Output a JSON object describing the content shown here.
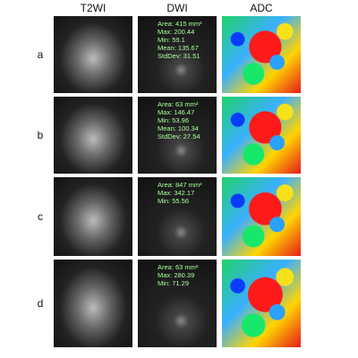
{
  "columns": [
    "T2WI",
    "DWI",
    "ADC"
  ],
  "rows": [
    {
      "label": "a",
      "dwi_stats": [
        "Area: 415 mm²",
        "Max: 200.44",
        "Min: 59.1",
        "Mean: 135.67",
        "StdDev: 31.51"
      ]
    },
    {
      "label": "b",
      "dwi_stats": [
        "Area: 63 mm²",
        "Max: 146.47",
        "Min: 53.96",
        "Mean: 100.34",
        "StdDev: 27.54"
      ]
    },
    {
      "label": "c",
      "dwi_stats": [
        "Area: 847 mm²",
        "Max: 342.17",
        "Min: 55.56"
      ]
    },
    {
      "label": "d",
      "dwi_stats": [
        "Area: 63 mm²",
        "Max: 280.39",
        "Min: 71.29"
      ]
    }
  ]
}
